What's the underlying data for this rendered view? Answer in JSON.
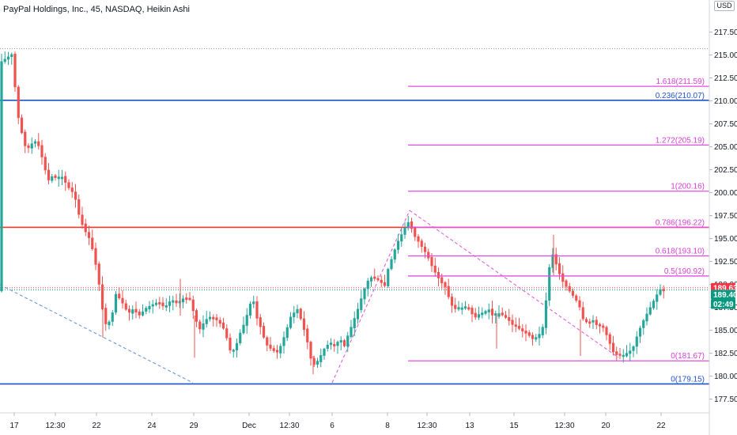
{
  "title": "PayPal Holdings, Inc., 45, NASDAQ, Heikin Ashi",
  "currency": "USD",
  "chart_data": {
    "type": "candlestick",
    "y_range": [
      176,
      221
    ],
    "y_ticks": [
      177.5,
      180.0,
      182.5,
      185.0,
      187.5,
      190.0,
      192.5,
      195.0,
      197.5,
      200.0,
      202.5,
      205.0,
      207.5,
      210.0,
      212.5,
      215.0,
      217.5
    ],
    "x_ticks": [
      "17",
      "12:30",
      "22",
      "24",
      "29",
      "Dec",
      "12:30",
      "6",
      "8",
      "12:30",
      "13",
      "15",
      "12:30",
      "20",
      "22"
    ],
    "horizontal_lines": [
      {
        "name": "blue-line-upper",
        "value": 210.07,
        "color": "#1e53c8"
      },
      {
        "name": "red-line",
        "value": 196.22,
        "color": "#e8382f"
      },
      {
        "name": "blue-line-lower",
        "value": 179.15,
        "color": "#1e53c8"
      }
    ],
    "fib_levels": [
      {
        "label": "1.618(211.59)",
        "value": 211.59
      },
      {
        "label": "0.236(210.07)",
        "value": 210.07,
        "color": "#1e53c8"
      },
      {
        "label": "1.272(205.19)",
        "value": 205.19
      },
      {
        "label": "1(200.16)",
        "value": 200.16
      },
      {
        "label": "0.786(196.22)",
        "value": 196.22
      },
      {
        "label": "0.618(193.10)",
        "value": 193.1
      },
      {
        "label": "0.5(190.92)",
        "value": 190.92
      },
      {
        "label": "0(181.67)",
        "value": 181.67
      },
      {
        "label": "0(179.15)",
        "value": 179.15,
        "color": "#1e53c8"
      }
    ],
    "price_badges": [
      {
        "value": "189.63",
        "color": "#f23645"
      },
      {
        "value": "189.40",
        "color": "#089981"
      },
      {
        "value": "02:49",
        "color": "#089981"
      }
    ],
    "candle_path": [
      [
        0,
        214.2
      ],
      [
        5,
        214.5
      ],
      [
        10,
        214.8
      ],
      [
        15,
        215.1
      ],
      [
        18,
        213.5
      ],
      [
        20,
        209.5
      ],
      [
        26,
        207.0
      ],
      [
        32,
        205.0
      ],
      [
        38,
        204.8
      ],
      [
        42,
        205.8
      ],
      [
        48,
        205.3
      ],
      [
        56,
        203.0
      ],
      [
        60,
        201.2
      ],
      [
        66,
        201.8
      ],
      [
        72,
        201.5
      ],
      [
        78,
        201.8
      ],
      [
        86,
        200.6
      ],
      [
        94,
        199.8
      ],
      [
        100,
        197.5
      ],
      [
        106,
        196.0
      ],
      [
        112,
        195.2
      ],
      [
        118,
        193.5
      ],
      [
        124,
        190.8
      ],
      [
        128,
        188.2
      ],
      [
        132,
        185.8
      ],
      [
        136,
        185.5
      ],
      [
        142,
        186.8
      ],
      [
        146,
        189.0
      ],
      [
        150,
        188.6
      ],
      [
        156,
        187.8
      ],
      [
        162,
        186.8
      ],
      [
        168,
        187.3
      ],
      [
        176,
        186.6
      ],
      [
        184,
        187.4
      ],
      [
        192,
        187.8
      ],
      [
        200,
        188.0
      ],
      [
        208,
        187.5
      ],
      [
        216,
        188.3
      ],
      [
        224,
        187.9
      ],
      [
        232,
        188.5
      ],
      [
        240,
        188.3
      ],
      [
        246,
        186.6
      ],
      [
        252,
        185.0
      ],
      [
        260,
        186.2
      ],
      [
        268,
        186.4
      ],
      [
        276,
        186.0
      ],
      [
        284,
        185.0
      ],
      [
        292,
        182.5
      ],
      [
        298,
        183.2
      ],
      [
        304,
        184.8
      ],
      [
        310,
        186.0
      ],
      [
        316,
        187.8
      ],
      [
        320,
        188.5
      ],
      [
        324,
        186.5
      ],
      [
        330,
        185.2
      ],
      [
        336,
        183.5
      ],
      [
        342,
        183.0
      ],
      [
        350,
        182.5
      ],
      [
        356,
        183.5
      ],
      [
        362,
        185.0
      ],
      [
        368,
        186.6
      ],
      [
        376,
        187.3
      ],
      [
        382,
        185.8
      ],
      [
        388,
        184.0
      ],
      [
        394,
        181.5
      ],
      [
        398,
        181.2
      ],
      [
        404,
        182.0
      ],
      [
        410,
        183.0
      ],
      [
        416,
        183.6
      ],
      [
        422,
        183.3
      ],
      [
        430,
        184.0
      ],
      [
        436,
        183.2
      ],
      [
        440,
        184.5
      ],
      [
        446,
        185.8
      ],
      [
        452,
        187.2
      ],
      [
        458,
        188.8
      ],
      [
        464,
        190.3
      ],
      [
        470,
        190.8
      ],
      [
        476,
        190.6
      ],
      [
        482,
        190.2
      ],
      [
        486,
        189.6
      ],
      [
        490,
        191.5
      ],
      [
        496,
        193.0
      ],
      [
        502,
        194.5
      ],
      [
        508,
        195.5
      ],
      [
        514,
        196.5
      ],
      [
        518,
        197.0
      ],
      [
        522,
        195.5
      ],
      [
        528,
        194.8
      ],
      [
        534,
        194.0
      ],
      [
        540,
        193.2
      ],
      [
        546,
        192.0
      ],
      [
        552,
        191.0
      ],
      [
        558,
        190.2
      ],
      [
        564,
        189.6
      ],
      [
        570,
        187.8
      ],
      [
        576,
        187.3
      ],
      [
        584,
        187.4
      ],
      [
        592,
        187.5
      ],
      [
        600,
        186.3
      ],
      [
        606,
        186.8
      ],
      [
        612,
        187.0
      ],
      [
        618,
        187.3
      ],
      [
        624,
        186.4
      ],
      [
        630,
        186.9
      ],
      [
        636,
        186.6
      ],
      [
        642,
        186.2
      ],
      [
        648,
        185.6
      ],
      [
        656,
        185.2
      ],
      [
        662,
        184.8
      ],
      [
        668,
        184.5
      ],
      [
        674,
        184.0
      ],
      [
        680,
        184.3
      ],
      [
        686,
        185.2
      ],
      [
        690,
        187.8
      ],
      [
        694,
        191.5
      ],
      [
        698,
        193.5
      ],
      [
        704,
        192.0
      ],
      [
        710,
        190.5
      ],
      [
        718,
        189.5
      ],
      [
        726,
        188.6
      ],
      [
        732,
        187.8
      ],
      [
        738,
        186.0
      ],
      [
        744,
        185.8
      ],
      [
        750,
        186.0
      ],
      [
        756,
        185.4
      ],
      [
        762,
        185.5
      ],
      [
        766,
        184.7
      ],
      [
        770,
        183.8
      ],
      [
        776,
        182.5
      ],
      [
        782,
        182.2
      ],
      [
        788,
        182.3
      ],
      [
        794,
        182.6
      ],
      [
        800,
        183.0
      ],
      [
        806,
        184.5
      ],
      [
        812,
        185.8
      ],
      [
        818,
        186.8
      ],
      [
        824,
        187.8
      ],
      [
        830,
        188.8
      ],
      [
        836,
        189.6
      ],
      [
        840,
        189.4
      ]
    ]
  }
}
